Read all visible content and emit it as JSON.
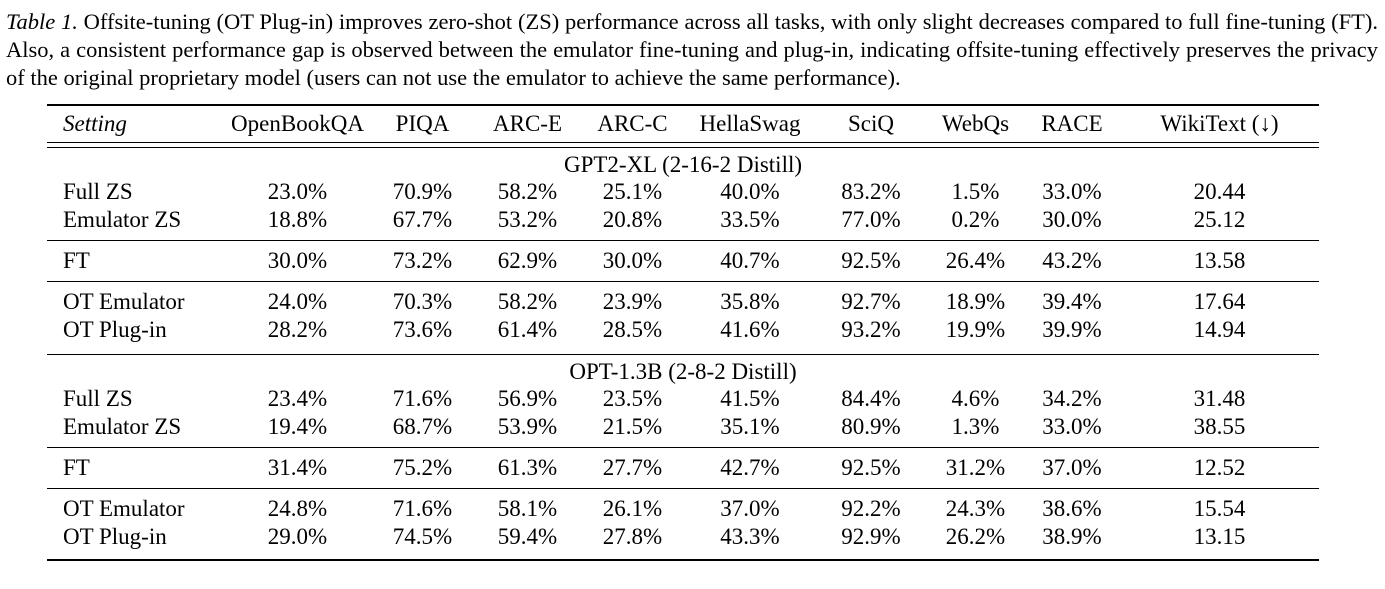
{
  "caption": {
    "label": "Table 1.",
    "text": " Offsite-tuning (OT Plug-in) improves zero-shot (ZS) performance across all tasks, with only slight decreases compared to full fine-tuning (FT). Also, a consistent performance gap is observed between the emulator fine-tuning and plug-in, indicating offsite-tuning effectively preserves the privacy of the original proprietary model (users can not use the emulator to achieve the same performance)."
  },
  "table": {
    "columns": [
      "Setting",
      "OpenBookQA",
      "PIQA",
      "ARC-E",
      "ARC-C",
      "HellaSwag",
      "SciQ",
      "WebQs",
      "RACE",
      "WikiText (↓)"
    ],
    "groups": [
      {
        "title": "GPT2-XL (2-16-2 Distill)",
        "rows": [
          {
            "setting": "Full ZS",
            "values": [
              "23.0%",
              "70.9%",
              "58.2%",
              "25.1%",
              "40.0%",
              "83.2%",
              "1.5%",
              "33.0%",
              "20.44"
            ]
          },
          {
            "setting": "Emulator ZS",
            "values": [
              "18.8%",
              "67.7%",
              "53.2%",
              "20.8%",
              "33.5%",
              "77.0%",
              "0.2%",
              "30.0%",
              "25.12"
            ]
          },
          {
            "setting": "FT",
            "values": [
              "30.0%",
              "73.2%",
              "62.9%",
              "30.0%",
              "40.7%",
              "92.5%",
              "26.4%",
              "43.2%",
              "13.58"
            ]
          },
          {
            "setting": "OT Emulator",
            "values": [
              "24.0%",
              "70.3%",
              "58.2%",
              "23.9%",
              "35.8%",
              "92.7%",
              "18.9%",
              "39.4%",
              "17.64"
            ]
          },
          {
            "setting": "OT Plug-in",
            "values": [
              "28.2%",
              "73.6%",
              "61.4%",
              "28.5%",
              "41.6%",
              "93.2%",
              "19.9%",
              "39.9%",
              "14.94"
            ]
          }
        ]
      },
      {
        "title": "OPT-1.3B (2-8-2 Distill)",
        "rows": [
          {
            "setting": "Full ZS",
            "values": [
              "23.4%",
              "71.6%",
              "56.9%",
              "23.5%",
              "41.5%",
              "84.4%",
              "4.6%",
              "34.2%",
              "31.48"
            ]
          },
          {
            "setting": "Emulator ZS",
            "values": [
              "19.4%",
              "68.7%",
              "53.9%",
              "21.5%",
              "35.1%",
              "80.9%",
              "1.3%",
              "33.0%",
              "38.55"
            ]
          },
          {
            "setting": "FT",
            "values": [
              "31.4%",
              "75.2%",
              "61.3%",
              "27.7%",
              "42.7%",
              "92.5%",
              "31.2%",
              "37.0%",
              "12.52"
            ]
          },
          {
            "setting": "OT Emulator",
            "values": [
              "24.8%",
              "71.6%",
              "58.1%",
              "26.1%",
              "37.0%",
              "92.2%",
              "24.3%",
              "38.6%",
              "15.54"
            ]
          },
          {
            "setting": "OT Plug-in",
            "values": [
              "29.0%",
              "74.5%",
              "59.4%",
              "27.8%",
              "43.3%",
              "92.9%",
              "26.2%",
              "38.9%",
              "13.15"
            ]
          }
        ]
      }
    ]
  }
}
